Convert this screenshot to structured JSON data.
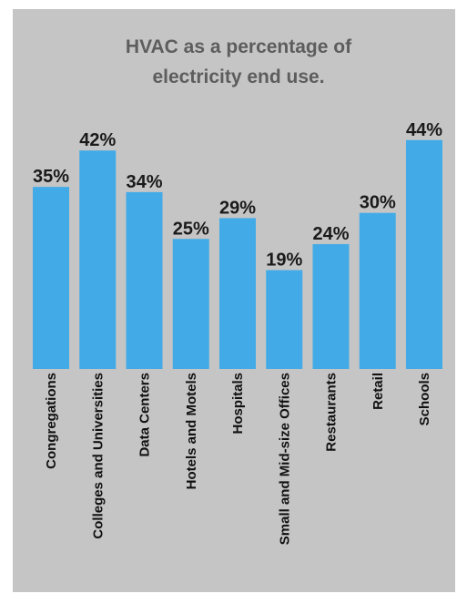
{
  "chart_data": {
    "type": "bar",
    "title": "HVAC as a percentage of electricity end use.",
    "title_lines": [
      "HVAC as a percentage of",
      "electricity end use."
    ],
    "xlabel": "",
    "ylabel": "",
    "ylim": [
      0,
      44
    ],
    "grid": false,
    "categories": [
      "Congregations",
      "Colleges and Universities",
      "Data Centers",
      "Hotels and Motels",
      "Hospitals",
      "Small and Mid-size Offices",
      "Restaurants",
      "Retail",
      "Schools"
    ],
    "values": [
      35,
      42,
      34,
      25,
      29,
      19,
      24,
      30,
      44
    ],
    "data_labels": [
      "35%",
      "42%",
      "34%",
      "25%",
      "29%",
      "19%",
      "24%",
      "30%",
      "44%"
    ],
    "bar_color": "#42abe7",
    "background_color": "#c5c5c5"
  }
}
